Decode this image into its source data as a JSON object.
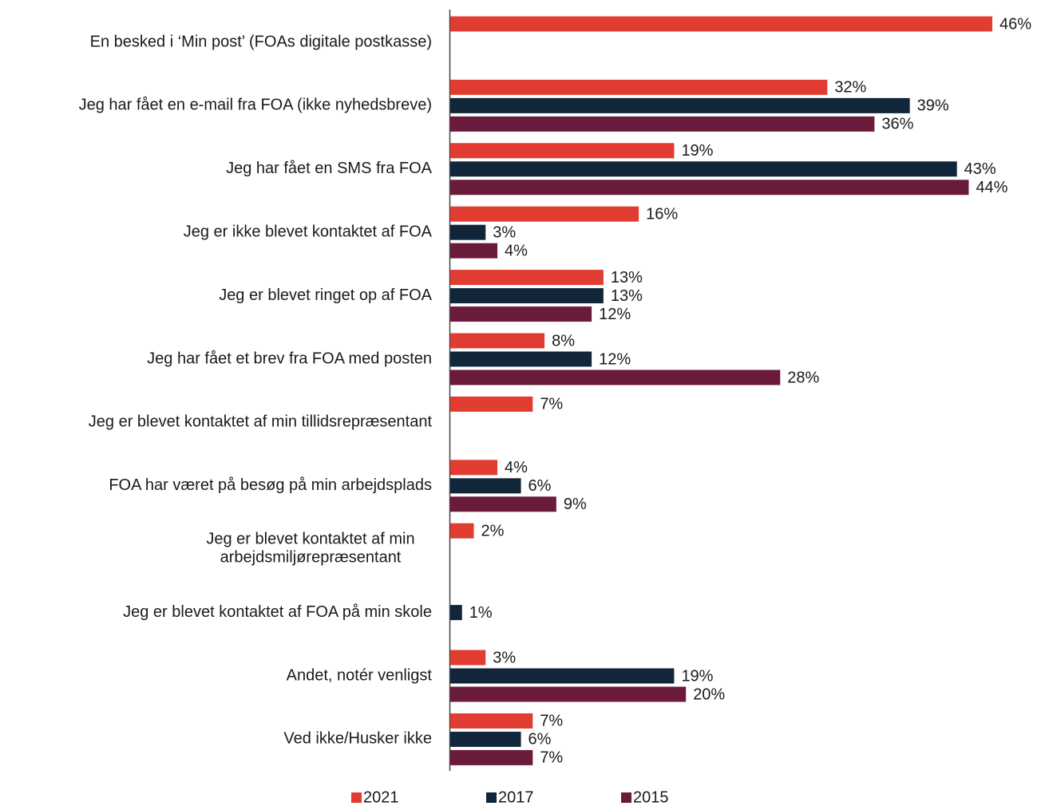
{
  "chart_data": {
    "type": "bar",
    "orientation": "horizontal",
    "categories": [
      "En besked i ‘Min post’ (FOAs digitale postkasse)",
      "Jeg har fået en e-mail fra FOA (ikke nyhedsbreve)",
      "Jeg har fået en SMS fra FOA",
      "Jeg er ikke blevet kontaktet af FOA",
      "Jeg er blevet ringet op af FOA",
      "Jeg har fået et brev fra FOA med posten",
      "Jeg er blevet kontaktet af min tillidsrepræsentant",
      "FOA har været på besøg på min arbejdsplads",
      [
        "Jeg er blevet kontaktet af min",
        "arbejdsmiljørepræsentant"
      ],
      "Jeg er blevet kontaktet af FOA på min skole",
      "Andet, notér venligst",
      "Ved ikke/Husker ikke"
    ],
    "series": [
      {
        "name": "2021",
        "color": "#e03c31",
        "values": [
          46,
          32,
          19,
          16,
          13,
          8,
          7,
          4,
          2,
          null,
          3,
          7
        ],
        "value_labels": [
          "46%",
          "32%",
          "19%",
          "16%",
          "13%",
          "8%",
          "7%",
          "4%",
          "2%",
          null,
          "3%",
          "7%"
        ]
      },
      {
        "name": "2017",
        "color": "#12263a",
        "values": [
          null,
          39,
          43,
          3,
          13,
          12,
          null,
          6,
          null,
          1,
          19,
          6
        ],
        "value_labels": [
          null,
          "39%",
          "43%",
          "3%",
          "13%",
          "12%",
          null,
          "6%",
          null,
          "1%",
          "19%",
          "6%"
        ]
      },
      {
        "name": "2015",
        "color": "#6a1a3a",
        "values": [
          null,
          36,
          44,
          4,
          12,
          28,
          null,
          9,
          null,
          null,
          20,
          7
        ],
        "value_labels": [
          null,
          "36%",
          "44%",
          "4%",
          "12%",
          "28%",
          null,
          "9%",
          null,
          null,
          "20%",
          "7%"
        ]
      }
    ]
  }
}
